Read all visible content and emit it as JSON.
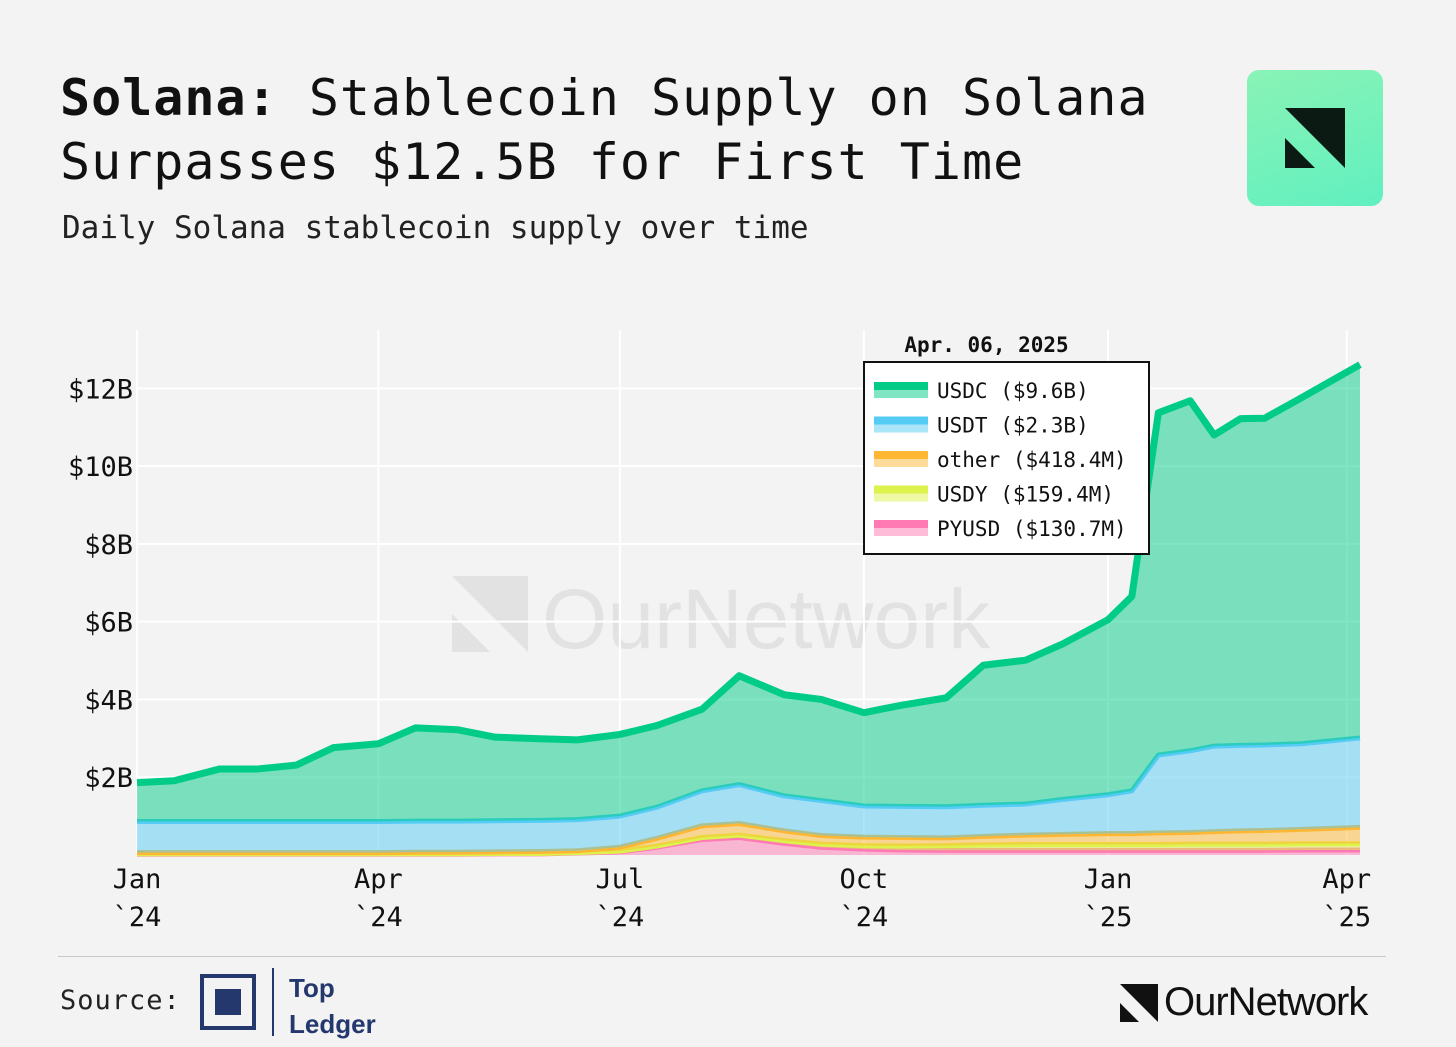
{
  "header": {
    "title_bold": "Solana:",
    "title_rest": " Stablecoin Supply on Solana Surpasses $12.5B for First Time",
    "subtitle": "Daily Solana stablecoin supply over time",
    "logo_icon": "ournetwork-logo-icon"
  },
  "footer": {
    "source_label": "Source:",
    "source_name_line1": "Top",
    "source_name_line2": "Ledger",
    "brand": "OurNetwork"
  },
  "watermark": "OurNetwork",
  "colors": {
    "usdc": "#00cc88",
    "usdt": "#55ccf5",
    "other": "#ffb733",
    "usdy": "#ddf24c",
    "pyusd": "#ff7ab3",
    "tl_blue": "#24386e"
  },
  "chart_data": {
    "type": "area",
    "stacked": true,
    "title": "Solana: Stablecoin Supply on Solana Surpasses $12.5B for First Time",
    "subtitle": "Daily Solana stablecoin supply over time",
    "x_ticks": [
      "Jan\n`24",
      "Apr\n`24",
      "Jul\n`24",
      "Oct\n`24",
      "Jan\n`25",
      "Apr\n`25"
    ],
    "y_ticks": [
      "$2B",
      "$4B",
      "$6B",
      "$8B",
      "$10B",
      "$12B"
    ],
    "ylim": [
      0,
      13.5
    ],
    "xlim": [
      "2024-01-01",
      "2025-04-06"
    ],
    "grid": true,
    "legend": {
      "title": "Apr. 06, 2025",
      "placement": "top-center-right",
      "entries": [
        "USDC ($9.6B)",
        "USDT ($2.3B)",
        "other ($418.4M)",
        "USDY ($159.4M)",
        "PYUSD ($130.7M)"
      ]
    },
    "x": [
      "2024-01-01",
      "2024-01-15",
      "2024-02-01",
      "2024-02-15",
      "2024-03-01",
      "2024-03-15",
      "2024-04-01",
      "2024-04-15",
      "2024-05-01",
      "2024-05-15",
      "2024-06-01",
      "2024-06-15",
      "2024-07-01",
      "2024-07-15",
      "2024-08-01",
      "2024-08-15",
      "2024-09-01",
      "2024-09-15",
      "2024-10-01",
      "2024-10-15",
      "2024-11-01",
      "2024-11-15",
      "2024-12-01",
      "2024-12-15",
      "2025-01-01",
      "2025-01-10",
      "2025-01-20",
      "2025-02-01",
      "2025-02-10",
      "2025-02-20",
      "2025-03-01",
      "2025-03-15",
      "2025-04-06"
    ],
    "series": [
      {
        "name": "PYUSD",
        "color": "#ff7ab3",
        "values": [
          0.02,
          0.02,
          0.02,
          0.02,
          0.02,
          0.02,
          0.02,
          0.02,
          0.02,
          0.03,
          0.03,
          0.05,
          0.08,
          0.2,
          0.4,
          0.45,
          0.3,
          0.2,
          0.15,
          0.13,
          0.12,
          0.12,
          0.12,
          0.12,
          0.12,
          0.12,
          0.12,
          0.12,
          0.12,
          0.12,
          0.12,
          0.13,
          0.13
        ]
      },
      {
        "name": "USDY",
        "color": "#ddf24c",
        "values": [
          0.01,
          0.01,
          0.01,
          0.01,
          0.01,
          0.01,
          0.01,
          0.01,
          0.01,
          0.01,
          0.01,
          0.01,
          0.02,
          0.03,
          0.05,
          0.06,
          0.07,
          0.08,
          0.09,
          0.1,
          0.12,
          0.14,
          0.15,
          0.15,
          0.15,
          0.15,
          0.15,
          0.16,
          0.16,
          0.16,
          0.16,
          0.16,
          0.16
        ]
      },
      {
        "name": "other",
        "color": "#ffb733",
        "values": [
          0.03,
          0.03,
          0.03,
          0.03,
          0.03,
          0.03,
          0.03,
          0.04,
          0.04,
          0.04,
          0.05,
          0.05,
          0.1,
          0.2,
          0.3,
          0.3,
          0.25,
          0.22,
          0.22,
          0.22,
          0.2,
          0.22,
          0.24,
          0.26,
          0.28,
          0.28,
          0.3,
          0.3,
          0.32,
          0.34,
          0.35,
          0.37,
          0.42
        ]
      },
      {
        "name": "USDT",
        "color": "#55ccf5",
        "values": [
          0.8,
          0.8,
          0.8,
          0.8,
          0.8,
          0.8,
          0.8,
          0.8,
          0.8,
          0.8,
          0.8,
          0.8,
          0.8,
          0.8,
          0.9,
          1.0,
          0.9,
          0.9,
          0.8,
          0.8,
          0.8,
          0.8,
          0.8,
          0.9,
          1.0,
          1.1,
          2.0,
          2.1,
          2.2,
          2.2,
          2.2,
          2.2,
          2.3
        ]
      },
      {
        "name": "USDC",
        "color": "#00cc88",
        "values": [
          1.0,
          1.05,
          1.35,
          1.35,
          1.45,
          1.9,
          2.0,
          2.4,
          2.35,
          2.15,
          2.1,
          2.05,
          2.1,
          2.1,
          2.1,
          2.8,
          2.6,
          2.6,
          2.4,
          2.6,
          2.8,
          3.6,
          3.7,
          4.0,
          4.5,
          5.0,
          8.8,
          9.0,
          8.0,
          8.4,
          8.4,
          8.9,
          9.6
        ]
      }
    ],
    "totals_line": [
      1.86,
      1.91,
      2.21,
      2.21,
      2.31,
      2.76,
      2.86,
      3.27,
      3.22,
      3.03,
      2.99,
      2.96,
      3.1,
      3.33,
      3.75,
      4.61,
      4.12,
      4.0,
      3.66,
      3.85,
      4.04,
      4.88,
      5.01,
      5.43,
      6.05,
      6.65,
      11.37,
      11.68,
      10.8,
      11.22,
      11.23,
      11.76,
      12.61
    ]
  }
}
